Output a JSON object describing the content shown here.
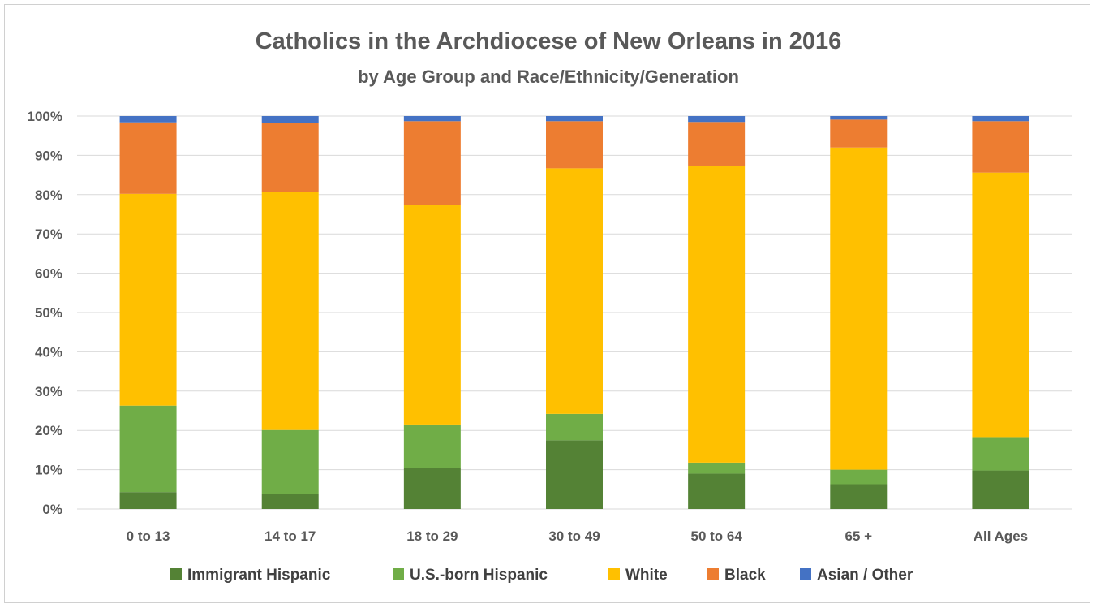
{
  "chart_data": {
    "type": "bar",
    "stacked": true,
    "percent_stacked": true,
    "title": "Catholics in the Archdiocese of New Orleans in 2016",
    "subtitle": "by Age Group and Race/Ethnicity/Generation",
    "xlabel": "",
    "ylabel": "",
    "ylim": [
      0,
      100
    ],
    "y_ticks": [
      "0%",
      "10%",
      "20%",
      "30%",
      "40%",
      "50%",
      "60%",
      "70%",
      "80%",
      "90%",
      "100%"
    ],
    "y_tick_values": [
      0,
      10,
      20,
      30,
      40,
      50,
      60,
      70,
      80,
      90,
      100
    ],
    "grid": true,
    "legend_position": "bottom",
    "categories": [
      "0 to 13",
      "14 to 17",
      "18 to 29",
      "30 to 49",
      "50 to 64",
      "65 +",
      "All Ages"
    ],
    "series": [
      {
        "name": "Immigrant Hispanic",
        "color": "#548235",
        "values": [
          4.3,
          3.8,
          10.5,
          17.5,
          9.0,
          6.3,
          9.8
        ]
      },
      {
        "name": "U.S.-born Hispanic",
        "color": "#70ad47",
        "values": [
          22.0,
          16.3,
          11.0,
          6.7,
          2.8,
          3.7,
          8.5
        ]
      },
      {
        "name": "White",
        "color": "#ffc000",
        "values": [
          53.9,
          60.5,
          55.8,
          62.5,
          75.6,
          82.0,
          67.3
        ]
      },
      {
        "name": "Black",
        "color": "#ed7d31",
        "values": [
          18.2,
          17.6,
          21.4,
          12.0,
          11.1,
          7.1,
          13.1
        ]
      },
      {
        "name": "Asian / Other",
        "color": "#4472c4",
        "values": [
          1.6,
          1.8,
          1.3,
          1.3,
          1.5,
          0.9,
          1.3
        ]
      }
    ]
  }
}
